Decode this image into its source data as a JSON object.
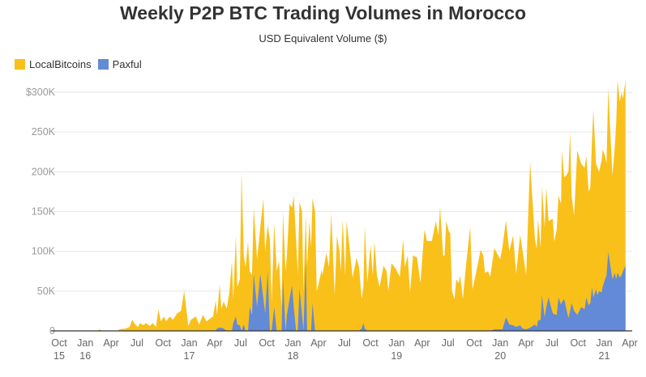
{
  "chart_data": {
    "type": "area",
    "stacked": true,
    "title": "Weekly P2P BTC Trading Volumes in Morocco",
    "subtitle": "USD Equivalent Volume ($)",
    "xlabel": "",
    "ylabel": "",
    "ylim": [
      0,
      300000
    ],
    "xlim": [
      "2015-10-01",
      "2021-04-01"
    ],
    "grid": true,
    "legend_position": "top-left",
    "yticks": [
      {
        "value": 0,
        "label": "0"
      },
      {
        "value": 50000,
        "label": "50K"
      },
      {
        "value": 100000,
        "label": "100K"
      },
      {
        "value": 150000,
        "label": "150K"
      },
      {
        "value": 200000,
        "label": "200K"
      },
      {
        "value": 250000,
        "label": "250K"
      },
      {
        "value": 300000,
        "label": "$300K"
      }
    ],
    "xticks": [
      {
        "date": "2015-10-01",
        "label": "Oct",
        "sub": "15"
      },
      {
        "date": "2016-01-01",
        "label": "Jan",
        "sub": "16"
      },
      {
        "date": "2016-04-01",
        "label": "Apr",
        "sub": ""
      },
      {
        "date": "2016-07-01",
        "label": "Jul",
        "sub": ""
      },
      {
        "date": "2016-10-01",
        "label": "Oct",
        "sub": ""
      },
      {
        "date": "2017-01-01",
        "label": "Jan",
        "sub": "17"
      },
      {
        "date": "2017-04-01",
        "label": "Apr",
        "sub": ""
      },
      {
        "date": "2017-07-01",
        "label": "Jul",
        "sub": ""
      },
      {
        "date": "2017-10-01",
        "label": "Oct",
        "sub": ""
      },
      {
        "date": "2018-01-01",
        "label": "Jan",
        "sub": "18"
      },
      {
        "date": "2018-04-01",
        "label": "Apr",
        "sub": ""
      },
      {
        "date": "2018-07-01",
        "label": "Jul",
        "sub": ""
      },
      {
        "date": "2018-10-01",
        "label": "Oct",
        "sub": ""
      },
      {
        "date": "2019-01-01",
        "label": "Jan",
        "sub": "19"
      },
      {
        "date": "2019-04-01",
        "label": "Apr",
        "sub": ""
      },
      {
        "date": "2019-07-01",
        "label": "Jul",
        "sub": ""
      },
      {
        "date": "2019-10-01",
        "label": "Oct",
        "sub": ""
      },
      {
        "date": "2020-01-01",
        "label": "Jan",
        "sub": "20"
      },
      {
        "date": "2020-04-01",
        "label": "Apr",
        "sub": ""
      },
      {
        "date": "2020-07-01",
        "label": "Jul",
        "sub": ""
      },
      {
        "date": "2020-10-01",
        "label": "Oct",
        "sub": ""
      },
      {
        "date": "2021-01-01",
        "label": "Jan",
        "sub": "21"
      },
      {
        "date": "2021-04-01",
        "label": "Apr",
        "sub": ""
      }
    ],
    "series": [
      {
        "name": "LocalBitcoins",
        "color": "#F9C01A"
      },
      {
        "name": "Paxful",
        "color": "#628AD6"
      }
    ],
    "columns": [
      "date",
      "LocalBitcoins",
      "Paxful"
    ],
    "rows": [
      [
        "2015-10-01",
        0,
        0
      ],
      [
        "2016-02-13",
        0,
        0
      ],
      [
        "2016-02-20",
        2000,
        0
      ],
      [
        "2016-02-29",
        0,
        0
      ],
      [
        "2016-04-23",
        0,
        0
      ],
      [
        "2016-05-01",
        2000,
        0
      ],
      [
        "2016-05-22",
        3000,
        0
      ],
      [
        "2016-06-05",
        5000,
        0
      ],
      [
        "2016-06-14",
        14000,
        0
      ],
      [
        "2016-06-25",
        8000,
        0
      ],
      [
        "2016-07-04",
        5000,
        0
      ],
      [
        "2016-07-12",
        10000,
        0
      ],
      [
        "2016-07-24",
        7000,
        0
      ],
      [
        "2016-08-01",
        10000,
        0
      ],
      [
        "2016-08-16",
        6000,
        0
      ],
      [
        "2016-08-25",
        10000,
        0
      ],
      [
        "2016-09-06",
        5000,
        0
      ],
      [
        "2016-09-14",
        27000,
        0
      ],
      [
        "2016-09-23",
        12000,
        0
      ],
      [
        "2016-10-04",
        18000,
        0
      ],
      [
        "2016-10-12",
        12000,
        0
      ],
      [
        "2016-10-24",
        18000,
        0
      ],
      [
        "2016-11-05",
        14000,
        0
      ],
      [
        "2016-11-19",
        22000,
        0
      ],
      [
        "2016-12-03",
        25000,
        0
      ],
      [
        "2016-12-14",
        50000,
        0
      ],
      [
        "2016-12-29",
        6000,
        0
      ],
      [
        "2017-01-07",
        14000,
        0
      ],
      [
        "2017-01-24",
        18000,
        0
      ],
      [
        "2017-02-05",
        8000,
        0
      ],
      [
        "2017-02-18",
        20000,
        0
      ],
      [
        "2017-03-03",
        12000,
        0
      ],
      [
        "2017-03-17",
        16000,
        0
      ],
      [
        "2017-03-26",
        18000,
        0
      ],
      [
        "2017-04-04",
        38000,
        0
      ],
      [
        "2017-04-09",
        17000,
        3000
      ],
      [
        "2017-04-18",
        54000,
        4000
      ],
      [
        "2017-04-24",
        24000,
        4000
      ],
      [
        "2017-05-02",
        34000,
        3000
      ],
      [
        "2017-05-13",
        28000,
        0
      ],
      [
        "2017-05-22",
        48000,
        0
      ],
      [
        "2017-05-31",
        87000,
        0
      ],
      [
        "2017-06-05",
        30000,
        10000
      ],
      [
        "2017-06-14",
        102000,
        18000
      ],
      [
        "2017-06-19",
        47000,
        8000
      ],
      [
        "2017-06-28",
        58000,
        7000
      ],
      [
        "2017-07-04",
        200000,
        0
      ],
      [
        "2017-07-12",
        87000,
        8000
      ],
      [
        "2017-07-18",
        80000,
        0
      ],
      [
        "2017-07-27",
        112000,
        0
      ],
      [
        "2017-08-02",
        45000,
        30000
      ],
      [
        "2017-08-10",
        50000,
        20000
      ],
      [
        "2017-08-16",
        83000,
        72000
      ],
      [
        "2017-08-28",
        60000,
        30000
      ],
      [
        "2017-09-08",
        58000,
        72000
      ],
      [
        "2017-09-19",
        126000,
        40000
      ],
      [
        "2017-09-25",
        78000,
        22000
      ],
      [
        "2017-10-04",
        58000,
        75000
      ],
      [
        "2017-10-12",
        115000,
        0
      ],
      [
        "2017-10-18",
        35000,
        0
      ],
      [
        "2017-10-27",
        105000,
        30000
      ],
      [
        "2017-11-05",
        75000,
        0
      ],
      [
        "2017-11-13",
        88000,
        0
      ],
      [
        "2017-11-22",
        30000,
        0
      ],
      [
        "2017-11-27",
        83000,
        67000
      ],
      [
        "2017-12-06",
        75000,
        0
      ],
      [
        "2017-12-11",
        75000,
        20000
      ],
      [
        "2017-12-20",
        120000,
        40000
      ],
      [
        "2017-12-29",
        98000,
        57000
      ],
      [
        "2018-01-04",
        140000,
        30000
      ],
      [
        "2018-01-12",
        115000,
        0
      ],
      [
        "2018-01-18",
        72000,
        0
      ],
      [
        "2018-01-24",
        109000,
        53000
      ],
      [
        "2018-02-02",
        130000,
        20000
      ],
      [
        "2018-02-07",
        50000,
        0
      ],
      [
        "2018-02-15",
        56000,
        90000
      ],
      [
        "2018-02-20",
        80000,
        0
      ],
      [
        "2018-02-28",
        138000,
        0
      ],
      [
        "2018-03-06",
        105000,
        0
      ],
      [
        "2018-03-11",
        132000,
        35000
      ],
      [
        "2018-03-20",
        150000,
        0
      ],
      [
        "2018-03-26",
        50000,
        0
      ],
      [
        "2018-04-01",
        58000,
        0
      ],
      [
        "2018-04-12",
        77000,
        0
      ],
      [
        "2018-04-15",
        70000,
        0
      ],
      [
        "2018-04-29",
        98000,
        0
      ],
      [
        "2018-05-08",
        80000,
        0
      ],
      [
        "2018-05-16",
        148000,
        0
      ],
      [
        "2018-05-28",
        45000,
        0
      ],
      [
        "2018-06-05",
        120000,
        0
      ],
      [
        "2018-06-14",
        100000,
        0
      ],
      [
        "2018-06-19",
        75000,
        0
      ],
      [
        "2018-06-25",
        140000,
        0
      ],
      [
        "2018-07-04",
        70000,
        0
      ],
      [
        "2018-07-09",
        138000,
        0
      ],
      [
        "2018-07-21",
        100000,
        0
      ],
      [
        "2018-07-30",
        67000,
        0
      ],
      [
        "2018-08-13",
        92000,
        0
      ],
      [
        "2018-08-22",
        80000,
        0
      ],
      [
        "2018-08-31",
        37000,
        3000
      ],
      [
        "2018-09-06",
        45000,
        10000
      ],
      [
        "2018-09-11",
        129000,
        3000
      ],
      [
        "2018-09-20",
        60000,
        0
      ],
      [
        "2018-10-01",
        108000,
        0
      ],
      [
        "2018-10-09",
        70000,
        0
      ],
      [
        "2018-10-15",
        112000,
        0
      ],
      [
        "2018-10-24",
        70000,
        0
      ],
      [
        "2018-11-02",
        55000,
        0
      ],
      [
        "2018-11-16",
        82000,
        0
      ],
      [
        "2018-11-27",
        75000,
        0
      ],
      [
        "2018-12-03",
        50000,
        0
      ],
      [
        "2018-12-14",
        85000,
        0
      ],
      [
        "2018-12-29",
        78000,
        0
      ],
      [
        "2019-01-12",
        68000,
        0
      ],
      [
        "2019-01-24",
        115000,
        0
      ],
      [
        "2019-01-30",
        80000,
        0
      ],
      [
        "2019-02-09",
        95000,
        0
      ],
      [
        "2019-02-17",
        48000,
        0
      ],
      [
        "2019-02-28",
        95000,
        0
      ],
      [
        "2019-03-14",
        92000,
        0
      ],
      [
        "2019-03-26",
        60000,
        0
      ],
      [
        "2019-04-09",
        127000,
        0
      ],
      [
        "2019-04-18",
        113000,
        0
      ],
      [
        "2019-05-05",
        113000,
        0
      ],
      [
        "2019-05-19",
        138000,
        0
      ],
      [
        "2019-05-28",
        120000,
        0
      ],
      [
        "2019-06-03",
        156000,
        0
      ],
      [
        "2019-06-14",
        94000,
        0
      ],
      [
        "2019-06-19",
        95000,
        0
      ],
      [
        "2019-06-25",
        138000,
        0
      ],
      [
        "2019-07-04",
        125000,
        0
      ],
      [
        "2019-07-09",
        123000,
        0
      ],
      [
        "2019-07-15",
        50000,
        0
      ],
      [
        "2019-07-24",
        40000,
        0
      ],
      [
        "2019-07-30",
        65000,
        0
      ],
      [
        "2019-08-08",
        60000,
        0
      ],
      [
        "2019-08-13",
        70000,
        0
      ],
      [
        "2019-08-22",
        40000,
        0
      ],
      [
        "2019-09-03",
        85000,
        0
      ],
      [
        "2019-09-17",
        131000,
        0
      ],
      [
        "2019-09-25",
        52000,
        0
      ],
      [
        "2019-10-07",
        72000,
        0
      ],
      [
        "2019-10-24",
        102000,
        0
      ],
      [
        "2019-11-02",
        95000,
        0
      ],
      [
        "2019-11-08",
        73000,
        0
      ],
      [
        "2019-11-19",
        75000,
        0
      ],
      [
        "2019-11-27",
        68000,
        0
      ],
      [
        "2019-12-11",
        102000,
        2000
      ],
      [
        "2020-01-01",
        88000,
        2000
      ],
      [
        "2020-01-09",
        104000,
        2000
      ],
      [
        "2020-01-21",
        122000,
        17000
      ],
      [
        "2020-02-02",
        92000,
        8000
      ],
      [
        "2020-02-15",
        113000,
        7000
      ],
      [
        "2020-02-26",
        67000,
        5000
      ],
      [
        "2020-03-11",
        114000,
        7000
      ],
      [
        "2020-03-20",
        97000,
        3000
      ],
      [
        "2020-04-01",
        68000,
        2000
      ],
      [
        "2020-04-15",
        209000,
        4000
      ],
      [
        "2020-05-02",
        107000,
        8000
      ],
      [
        "2020-05-08",
        98000,
        5000
      ],
      [
        "2020-05-13",
        127000,
        13000
      ],
      [
        "2020-05-22",
        91000,
        14000
      ],
      [
        "2020-05-27",
        137000,
        45000
      ],
      [
        "2020-06-05",
        113000,
        17000
      ],
      [
        "2020-06-11",
        150000,
        30000
      ],
      [
        "2020-06-19",
        96000,
        42000
      ],
      [
        "2020-07-04",
        119000,
        22000
      ],
      [
        "2020-07-09",
        91000,
        21000
      ],
      [
        "2020-07-18",
        108000,
        20000
      ],
      [
        "2020-07-24",
        128000,
        42000
      ],
      [
        "2020-08-02",
        127000,
        33000
      ],
      [
        "2020-08-05",
        190000,
        36000
      ],
      [
        "2020-08-13",
        153000,
        40000
      ],
      [
        "2020-08-19",
        165000,
        30000
      ],
      [
        "2020-08-28",
        184000,
        16000
      ],
      [
        "2020-09-03",
        225000,
        25000
      ],
      [
        "2020-09-08",
        135000,
        35000
      ],
      [
        "2020-09-17",
        120000,
        25000
      ],
      [
        "2020-09-28",
        207000,
        20000
      ],
      [
        "2020-10-12",
        180000,
        30000
      ],
      [
        "2020-10-24",
        178000,
        27000
      ],
      [
        "2020-10-30",
        178000,
        42000
      ],
      [
        "2020-11-07",
        143000,
        32000
      ],
      [
        "2020-11-13",
        145000,
        35000
      ],
      [
        "2020-11-19",
        185000,
        55000
      ],
      [
        "2020-11-24",
        236000,
        42000
      ],
      [
        "2020-12-03",
        158000,
        52000
      ],
      [
        "2020-12-08",
        160000,
        45000
      ],
      [
        "2020-12-14",
        150000,
        50000
      ],
      [
        "2020-12-23",
        167000,
        48000
      ],
      [
        "2020-12-26",
        173000,
        55000
      ],
      [
        "2021-01-04",
        155000,
        65000
      ],
      [
        "2021-01-09",
        140000,
        70000
      ],
      [
        "2021-01-15",
        206000,
        99000
      ],
      [
        "2021-01-30",
        130000,
        65000
      ],
      [
        "2021-02-07",
        157000,
        73000
      ],
      [
        "2021-02-12",
        195000,
        65000
      ],
      [
        "2021-02-17",
        242000,
        73000
      ],
      [
        "2021-02-25",
        221000,
        67000
      ],
      [
        "2021-03-03",
        230000,
        70000
      ],
      [
        "2021-03-08",
        217000,
        75000
      ],
      [
        "2021-03-17",
        233000,
        82000
      ]
    ]
  }
}
